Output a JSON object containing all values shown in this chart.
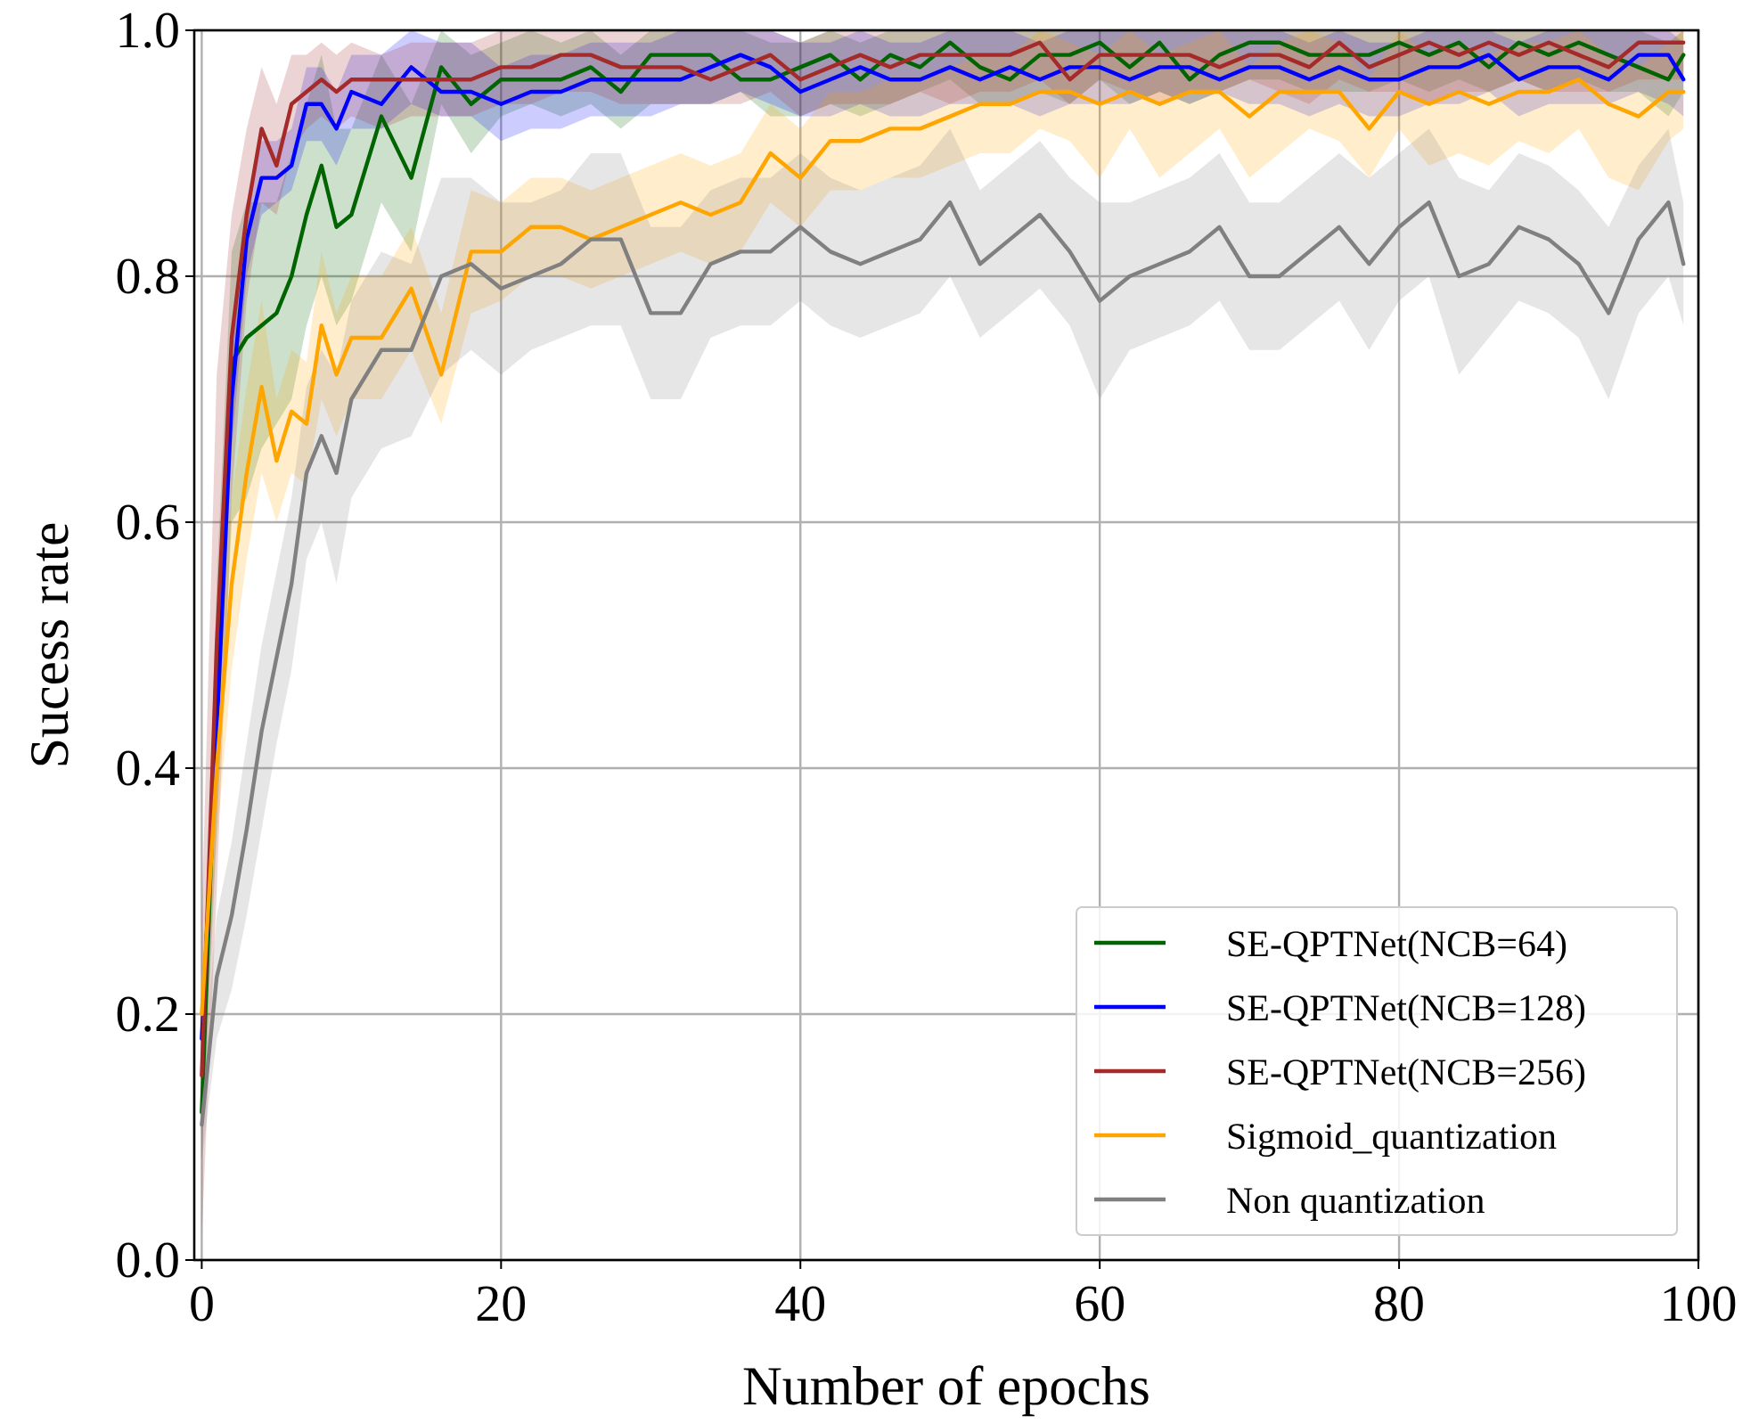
{
  "chart_data": {
    "type": "line",
    "xlabel": "Number of epochs",
    "ylabel": "Sucess rate",
    "x": [
      0,
      1,
      2,
      3,
      4,
      5,
      6,
      7,
      8,
      9,
      10,
      12,
      14,
      16,
      18,
      20,
      22,
      24,
      26,
      28,
      30,
      32,
      34,
      36,
      38,
      40,
      42,
      44,
      46,
      48,
      50,
      52,
      54,
      56,
      58,
      60,
      62,
      64,
      66,
      68,
      70,
      72,
      74,
      76,
      78,
      80,
      82,
      84,
      86,
      88,
      90,
      92,
      94,
      96,
      98,
      99
    ],
    "xlim": [
      -0.5,
      100
    ],
    "xticks": [
      0,
      20,
      40,
      60,
      80,
      100
    ],
    "ylim": [
      0,
      1
    ],
    "yticks": [
      {
        "value": 0,
        "label": "0.0"
      },
      {
        "value": 0.2,
        "label": "0.2"
      },
      {
        "value": 0.4,
        "label": "0.4"
      },
      {
        "value": 0.6,
        "label": "0.6"
      },
      {
        "value": 0.8,
        "label": "0.8"
      },
      {
        "value": 1,
        "label": "1.0"
      }
    ],
    "grid": true,
    "legend": "bottom right",
    "line_style": "solid",
    "marker": "none",
    "series": [
      {
        "name": "SE-QPTNet(NCB=64)",
        "color": "#006400",
        "values": [
          0.12,
          0.45,
          0.73,
          0.75,
          0.76,
          0.77,
          0.8,
          0.85,
          0.89,
          0.84,
          0.85,
          0.93,
          0.88,
          0.97,
          0.94,
          0.96,
          0.96,
          0.96,
          0.97,
          0.95,
          0.98,
          0.98,
          0.98,
          0.96,
          0.96,
          0.97,
          0.98,
          0.96,
          0.98,
          0.97,
          0.99,
          0.97,
          0.96,
          0.98,
          0.98,
          0.99,
          0.97,
          0.99,
          0.96,
          0.98,
          0.99,
          0.99,
          0.98,
          0.98,
          0.98,
          0.99,
          0.98,
          0.99,
          0.97,
          0.99,
          0.98,
          0.99,
          0.98,
          0.97,
          0.96,
          0.98
        ],
        "lower": [
          0.08,
          0.35,
          0.6,
          0.62,
          0.66,
          0.68,
          0.7,
          0.76,
          0.8,
          0.76,
          0.78,
          0.86,
          0.82,
          0.94,
          0.9,
          0.93,
          0.94,
          0.93,
          0.94,
          0.92,
          0.94,
          0.94,
          0.94,
          0.95,
          0.93,
          0.93,
          0.94,
          0.93,
          0.94,
          0.95,
          0.96,
          0.94,
          0.94,
          0.95,
          0.94,
          0.96,
          0.94,
          0.95,
          0.94,
          0.95,
          0.96,
          0.96,
          0.95,
          0.95,
          0.95,
          0.96,
          0.95,
          0.96,
          0.95,
          0.96,
          0.95,
          0.96,
          0.95,
          0.95,
          0.93,
          0.95
        ],
        "upper": [
          0.16,
          0.55,
          0.82,
          0.86,
          0.86,
          0.86,
          0.9,
          0.94,
          0.98,
          0.92,
          0.92,
          0.98,
          0.94,
          1.0,
          0.98,
          0.99,
          1.0,
          0.99,
          1.0,
          0.98,
          1.0,
          1.0,
          1.0,
          1.0,
          0.99,
          0.99,
          1.0,
          0.99,
          1.0,
          1.0,
          1.0,
          1.0,
          1.0,
          1.0,
          1.0,
          1.0,
          1.0,
          1.0,
          1.0,
          1.0,
          1.0,
          1.0,
          1.0,
          1.0,
          1.0,
          1.0,
          1.0,
          1.0,
          1.0,
          1.0,
          1.0,
          1.0,
          1.0,
          1.0,
          0.99,
          1.0
        ]
      },
      {
        "name": "SE-QPTNet(NCB=128)",
        "color": "#0000ff",
        "values": [
          0.18,
          0.43,
          0.7,
          0.83,
          0.88,
          0.88,
          0.89,
          0.94,
          0.94,
          0.92,
          0.95,
          0.94,
          0.97,
          0.95,
          0.95,
          0.94,
          0.95,
          0.95,
          0.96,
          0.96,
          0.96,
          0.96,
          0.97,
          0.98,
          0.97,
          0.95,
          0.96,
          0.97,
          0.96,
          0.96,
          0.97,
          0.96,
          0.97,
          0.96,
          0.97,
          0.97,
          0.96,
          0.97,
          0.97,
          0.96,
          0.97,
          0.97,
          0.96,
          0.97,
          0.96,
          0.96,
          0.97,
          0.97,
          0.98,
          0.96,
          0.97,
          0.97,
          0.96,
          0.98,
          0.98,
          0.96
        ],
        "lower": [
          0.15,
          0.4,
          0.66,
          0.8,
          0.85,
          0.86,
          0.87,
          0.91,
          0.91,
          0.89,
          0.92,
          0.92,
          0.94,
          0.93,
          0.93,
          0.91,
          0.92,
          0.92,
          0.93,
          0.93,
          0.93,
          0.94,
          0.94,
          0.95,
          0.94,
          0.93,
          0.93,
          0.94,
          0.93,
          0.93,
          0.94,
          0.94,
          0.94,
          0.93,
          0.94,
          0.94,
          0.94,
          0.95,
          0.94,
          0.95,
          0.94,
          0.94,
          0.93,
          0.94,
          0.93,
          0.93,
          0.94,
          0.94,
          0.95,
          0.93,
          0.94,
          0.94,
          0.94,
          0.95,
          0.94,
          0.93
        ],
        "upper": [
          0.21,
          0.5,
          0.74,
          0.86,
          0.91,
          0.91,
          0.92,
          0.97,
          0.97,
          0.95,
          0.98,
          0.98,
          1.0,
          0.99,
          0.99,
          0.97,
          0.98,
          0.98,
          0.99,
          0.99,
          0.99,
          1.0,
          1.0,
          1.0,
          1.0,
          0.99,
          0.99,
          1.0,
          0.99,
          0.99,
          1.0,
          1.0,
          1.0,
          0.99,
          1.0,
          1.0,
          1.0,
          1.0,
          1.0,
          1.0,
          1.0,
          1.0,
          0.99,
          1.0,
          0.99,
          0.99,
          1.0,
          1.0,
          1.0,
          0.99,
          1.0,
          1.0,
          1.0,
          1.0,
          1.0,
          0.99
        ]
      },
      {
        "name": "SE-QPTNet(NCB=256)",
        "color": "#a52a2a",
        "values": [
          0.15,
          0.5,
          0.75,
          0.85,
          0.92,
          0.89,
          0.94,
          0.95,
          0.96,
          0.95,
          0.96,
          0.96,
          0.96,
          0.96,
          0.96,
          0.97,
          0.97,
          0.98,
          0.98,
          0.97,
          0.97,
          0.97,
          0.96,
          0.97,
          0.98,
          0.96,
          0.97,
          0.98,
          0.97,
          0.98,
          0.98,
          0.98,
          0.98,
          0.99,
          0.96,
          0.98,
          0.98,
          0.98,
          0.98,
          0.97,
          0.98,
          0.98,
          0.97,
          0.99,
          0.97,
          0.98,
          0.99,
          0.98,
          0.99,
          0.98,
          0.99,
          0.98,
          0.97,
          0.99,
          0.99,
          0.99
        ],
        "lower": [
          0.02,
          0.3,
          0.62,
          0.78,
          0.86,
          0.85,
          0.9,
          0.92,
          0.93,
          0.92,
          0.93,
          0.92,
          0.93,
          0.93,
          0.93,
          0.94,
          0.94,
          0.95,
          0.95,
          0.94,
          0.94,
          0.94,
          0.94,
          0.94,
          0.95,
          0.93,
          0.94,
          0.94,
          0.94,
          0.95,
          0.94,
          0.95,
          0.95,
          0.96,
          0.94,
          0.96,
          0.95,
          0.94,
          0.95,
          0.95,
          0.96,
          0.95,
          0.94,
          0.96,
          0.95,
          0.95,
          0.94,
          0.95,
          0.95,
          0.96,
          0.95,
          0.95,
          0.95,
          0.96,
          0.96,
          0.96
        ],
        "upper": [
          0.28,
          0.72,
          0.85,
          0.92,
          0.97,
          0.94,
          0.98,
          0.98,
          0.99,
          0.98,
          0.99,
          0.98,
          0.99,
          0.99,
          0.99,
          1.0,
          1.0,
          1.0,
          1.0,
          1.0,
          1.0,
          1.0,
          1.0,
          1.0,
          1.0,
          0.99,
          1.0,
          1.0,
          1.0,
          1.0,
          1.0,
          1.0,
          1.0,
          1.0,
          1.0,
          1.0,
          1.0,
          1.0,
          1.0,
          1.0,
          1.0,
          1.0,
          1.0,
          1.0,
          1.0,
          1.0,
          1.0,
          1.0,
          1.0,
          1.0,
          1.0,
          1.0,
          1.0,
          1.0,
          1.0,
          1.0
        ]
      },
      {
        "name": "Sigmoid_quantization",
        "color": "#ffa500",
        "values": [
          0.2,
          0.4,
          0.55,
          0.64,
          0.71,
          0.65,
          0.69,
          0.68,
          0.76,
          0.72,
          0.75,
          0.75,
          0.79,
          0.72,
          0.82,
          0.82,
          0.84,
          0.84,
          0.83,
          0.84,
          0.85,
          0.86,
          0.85,
          0.86,
          0.9,
          0.88,
          0.91,
          0.91,
          0.92,
          0.92,
          0.93,
          0.94,
          0.94,
          0.95,
          0.95,
          0.94,
          0.95,
          0.94,
          0.95,
          0.95,
          0.93,
          0.95,
          0.95,
          0.95,
          0.92,
          0.95,
          0.94,
          0.95,
          0.94,
          0.95,
          0.95,
          0.96,
          0.94,
          0.93,
          0.95,
          0.95
        ],
        "lower": [
          0.16,
          0.34,
          0.48,
          0.57,
          0.64,
          0.6,
          0.64,
          0.63,
          0.7,
          0.67,
          0.7,
          0.7,
          0.74,
          0.68,
          0.77,
          0.78,
          0.8,
          0.8,
          0.79,
          0.8,
          0.81,
          0.82,
          0.81,
          0.82,
          0.86,
          0.84,
          0.87,
          0.87,
          0.88,
          0.88,
          0.89,
          0.9,
          0.9,
          0.92,
          0.91,
          0.88,
          0.92,
          0.88,
          0.9,
          0.92,
          0.88,
          0.9,
          0.92,
          0.91,
          0.88,
          0.92,
          0.89,
          0.9,
          0.89,
          0.91,
          0.9,
          0.92,
          0.88,
          0.87,
          0.91,
          0.92
        ],
        "upper": [
          0.24,
          0.46,
          0.62,
          0.71,
          0.78,
          0.7,
          0.74,
          0.73,
          0.82,
          0.77,
          0.8,
          0.8,
          0.84,
          0.77,
          0.87,
          0.86,
          0.88,
          0.88,
          0.87,
          0.88,
          0.89,
          0.9,
          0.89,
          0.9,
          0.94,
          0.92,
          0.95,
          0.95,
          0.96,
          0.96,
          0.97,
          0.98,
          0.98,
          1.0,
          0.99,
          0.98,
          1.0,
          0.98,
          0.99,
          1.0,
          0.97,
          0.99,
          1.0,
          0.99,
          0.96,
          1.0,
          0.98,
          0.99,
          0.98,
          0.99,
          0.99,
          1.0,
          0.98,
          0.97,
          0.99,
          1.0
        ]
      },
      {
        "name": "Non quantization",
        "color": "#808080",
        "values": [
          0.11,
          0.23,
          0.28,
          0.35,
          0.43,
          0.49,
          0.55,
          0.64,
          0.67,
          0.64,
          0.7,
          0.74,
          0.74,
          0.8,
          0.81,
          0.79,
          0.8,
          0.81,
          0.83,
          0.83,
          0.77,
          0.77,
          0.81,
          0.82,
          0.82,
          0.84,
          0.82,
          0.81,
          0.82,
          0.83,
          0.86,
          0.81,
          0.83,
          0.85,
          0.82,
          0.78,
          0.8,
          0.81,
          0.82,
          0.84,
          0.8,
          0.8,
          0.82,
          0.84,
          0.81,
          0.84,
          0.86,
          0.8,
          0.81,
          0.84,
          0.83,
          0.81,
          0.77,
          0.83,
          0.86,
          0.81
        ],
        "lower": [
          0.08,
          0.18,
          0.22,
          0.28,
          0.35,
          0.42,
          0.48,
          0.57,
          0.6,
          0.55,
          0.62,
          0.66,
          0.67,
          0.72,
          0.74,
          0.72,
          0.74,
          0.75,
          0.76,
          0.76,
          0.7,
          0.7,
          0.75,
          0.76,
          0.76,
          0.78,
          0.76,
          0.75,
          0.76,
          0.77,
          0.8,
          0.75,
          0.77,
          0.79,
          0.76,
          0.7,
          0.74,
          0.75,
          0.76,
          0.78,
          0.74,
          0.74,
          0.76,
          0.78,
          0.74,
          0.78,
          0.8,
          0.72,
          0.75,
          0.78,
          0.77,
          0.75,
          0.7,
          0.77,
          0.8,
          0.76
        ],
        "upper": [
          0.14,
          0.28,
          0.34,
          0.42,
          0.5,
          0.56,
          0.62,
          0.71,
          0.74,
          0.72,
          0.78,
          0.82,
          0.81,
          0.88,
          0.88,
          0.86,
          0.86,
          0.87,
          0.9,
          0.9,
          0.84,
          0.84,
          0.87,
          0.88,
          0.88,
          0.9,
          0.88,
          0.87,
          0.88,
          0.89,
          0.92,
          0.87,
          0.89,
          0.91,
          0.88,
          0.86,
          0.86,
          0.87,
          0.88,
          0.9,
          0.86,
          0.86,
          0.88,
          0.9,
          0.88,
          0.9,
          0.92,
          0.88,
          0.87,
          0.9,
          0.89,
          0.87,
          0.84,
          0.89,
          0.92,
          0.86
        ]
      }
    ]
  }
}
